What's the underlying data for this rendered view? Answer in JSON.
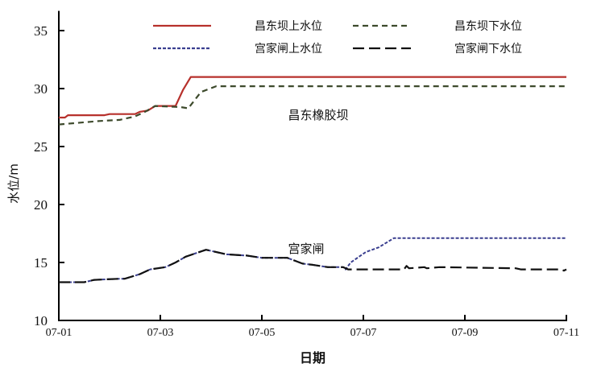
{
  "chart_data": {
    "type": "line",
    "xlabel": "日期",
    "ylabel": "水位/m",
    "ylim": [
      10,
      36.7
    ],
    "yticks": [
      10,
      15,
      20,
      25,
      30,
      35
    ],
    "xticks": [
      "07-01",
      "07-03",
      "07-05",
      "07-07",
      "07-09",
      "07-11"
    ],
    "x_unit_note": "x values in days after 07-01",
    "legend_position": "top",
    "annotations": [
      "昌东橡胶坝",
      "宫家闸"
    ],
    "series": [
      {
        "name": "昌东坝上水位",
        "color": "#b7312c",
        "style": "solid",
        "x": [
          0,
          0.12,
          0.18,
          0.9,
          1.0,
          1.5,
          1.6,
          1.75,
          1.9,
          2.3,
          2.45,
          2.6,
          10
        ],
        "y": [
          27.5,
          27.5,
          27.7,
          27.7,
          27.8,
          27.8,
          28.0,
          28.1,
          28.5,
          28.5,
          29.9,
          31.0,
          31.0
        ]
      },
      {
        "name": "昌东坝下水位",
        "color": "#3d4a2c",
        "style": "dashed",
        "x": [
          0,
          0.8,
          1.2,
          1.5,
          1.7,
          1.9,
          2.4,
          2.55,
          2.8,
          3.1,
          10
        ],
        "y": [
          26.9,
          27.2,
          27.3,
          27.6,
          28.0,
          28.5,
          28.4,
          28.3,
          29.7,
          30.2,
          30.2
        ]
      },
      {
        "name": "宫家闸上水位",
        "color": "#3a3f8f",
        "style": "dotted",
        "x": [
          0,
          0.5,
          0.7,
          1.2,
          1.3,
          1.6,
          1.8,
          2.1,
          2.3,
          2.5,
          2.9,
          3.0,
          3.3,
          3.7,
          4.0,
          4.5,
          4.8,
          5.0,
          5.3,
          5.6,
          5.7,
          5.65,
          5.75,
          6.05,
          6.3,
          6.6,
          10
        ],
        "y": [
          13.3,
          13.3,
          13.5,
          13.6,
          13.6,
          14.0,
          14.4,
          14.6,
          15.0,
          15.5,
          16.1,
          16.0,
          15.7,
          15.6,
          15.4,
          15.4,
          14.9,
          14.8,
          14.6,
          14.6,
          14.4,
          14.4,
          15.0,
          15.9,
          16.3,
          17.1,
          17.1
        ]
      },
      {
        "name": "宫家闸下水位",
        "color": "#111111",
        "style": "longdash",
        "x": [
          0,
          0.5,
          0.7,
          1.2,
          1.3,
          1.6,
          1.8,
          2.1,
          2.3,
          2.5,
          2.9,
          3.0,
          3.3,
          3.7,
          4.0,
          4.5,
          4.8,
          5.0,
          5.3,
          5.6,
          5.7,
          6.8,
          6.85,
          6.9,
          7.2,
          7.25,
          7.5,
          9.0,
          9.1,
          9.9,
          9.95,
          10
        ],
        "y": [
          13.3,
          13.3,
          13.5,
          13.6,
          13.6,
          14.0,
          14.4,
          14.6,
          15.0,
          15.5,
          16.1,
          16.0,
          15.7,
          15.6,
          15.4,
          15.4,
          14.9,
          14.8,
          14.6,
          14.6,
          14.4,
          14.4,
          14.7,
          14.5,
          14.6,
          14.5,
          14.6,
          14.5,
          14.4,
          14.4,
          14.3,
          14.4
        ]
      }
    ]
  }
}
